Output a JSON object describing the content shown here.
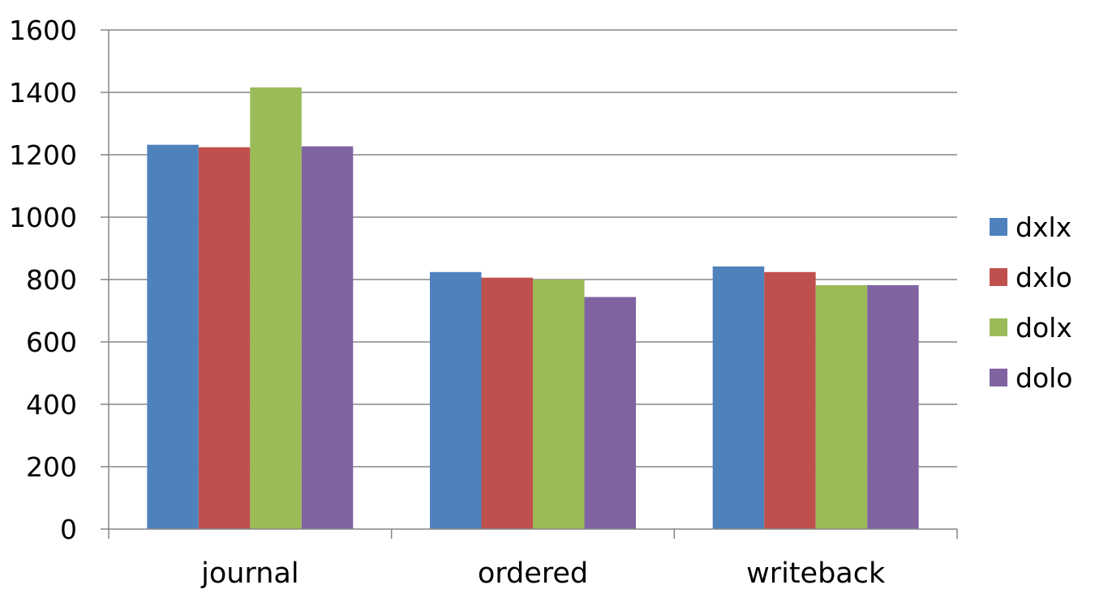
{
  "chart_data": {
    "type": "bar",
    "title": "",
    "xlabel": "",
    "ylabel": "",
    "categories": [
      "journal",
      "ordered",
      "writeback"
    ],
    "series": [
      {
        "name": "dxlx",
        "color": "#4F81BD",
        "values": [
          1232,
          824,
          842
        ]
      },
      {
        "name": "dxlo",
        "color": "#C0504D",
        "values": [
          1224,
          806,
          824
        ]
      },
      {
        "name": "dolx",
        "color": "#9BBB59",
        "values": [
          1416,
          800,
          782
        ]
      },
      {
        "name": "dolo",
        "color": "#8064A2",
        "values": [
          1227,
          744,
          782
        ]
      }
    ],
    "ylim": [
      0,
      1600
    ],
    "yticks": [
      0,
      200,
      400,
      600,
      800,
      1000,
      1200,
      1400,
      1600
    ],
    "grid": true,
    "legend": "right"
  }
}
